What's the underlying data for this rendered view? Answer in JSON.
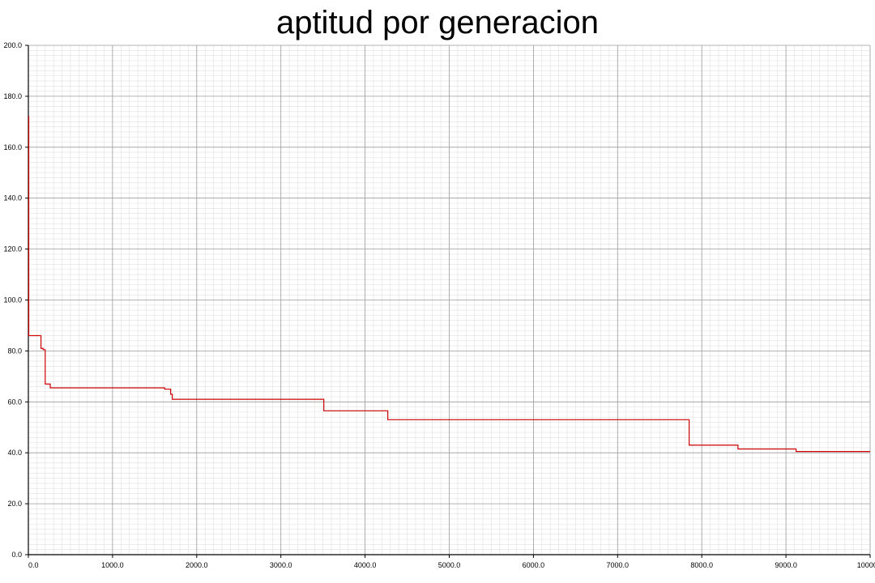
{
  "chart_data": {
    "type": "line",
    "title": "aptitud por generacion",
    "xlabel": "",
    "ylabel": "",
    "xlim": [
      0,
      10000
    ],
    "ylim": [
      0,
      200
    ],
    "grid": true,
    "step": true,
    "x_ticks": [
      "0.0",
      "1000.0",
      "2000.0",
      "3000.0",
      "4000.0",
      "5000.0",
      "6000.0",
      "7000.0",
      "8000.0",
      "9000.0",
      "10000.0"
    ],
    "y_ticks": [
      "0.0",
      "20.0",
      "40.0",
      "60.0",
      "80.0",
      "100.0",
      "120.0",
      "140.0",
      "160.0",
      "180.0",
      "200.0"
    ],
    "series": [
      {
        "color": "#cc0000",
        "x": [
          0,
          5,
          150,
          175,
          200,
          260,
          1620,
          1690,
          1710,
          1730,
          3510,
          4270,
          7850,
          8430,
          9120,
          10000
        ],
        "y": [
          172,
          86,
          81,
          80.5,
          67,
          65.5,
          65,
          63,
          61,
          61,
          56.5,
          53,
          43,
          41.5,
          40.5,
          40.5
        ]
      }
    ]
  }
}
